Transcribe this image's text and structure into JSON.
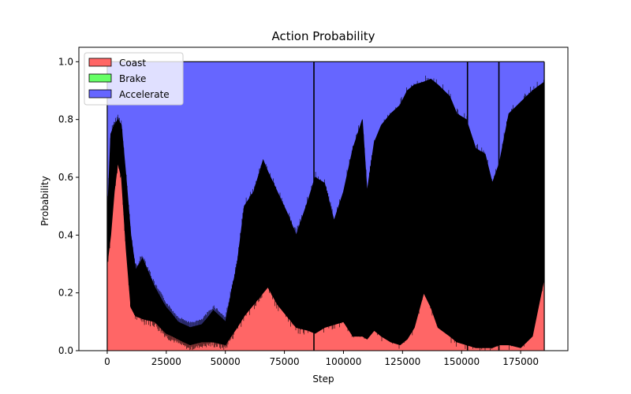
{
  "chart_data": {
    "type": "area",
    "stacked": true,
    "title": "Action Probability",
    "xlabel": "Step",
    "ylabel": "Probability",
    "xlim": [
      -12000,
      195000
    ],
    "ylim": [
      0,
      1.05
    ],
    "x_end": 185000,
    "xticks": [
      0,
      25000,
      50000,
      75000,
      100000,
      125000,
      150000,
      175000
    ],
    "xtick_labels": [
      "0",
      "25000",
      "50000",
      "75000",
      "100000",
      "125000",
      "150000",
      "175000"
    ],
    "yticks": [
      0.0,
      0.2,
      0.4,
      0.6,
      0.8,
      1.0
    ],
    "ytick_labels": [
      "0.0",
      "0.2",
      "0.4",
      "0.6",
      "0.8",
      "1.0"
    ],
    "legend_position": "top-left",
    "series": [
      {
        "name": "Coast",
        "color": "#ff6666",
        "x": [
          0,
          1500,
          3000,
          4500,
          6000,
          8000,
          10000,
          12000,
          15000,
          20000,
          25000,
          30000,
          35000,
          40000,
          45000,
          50000,
          55000,
          60000,
          65000,
          68000,
          72000,
          80000,
          90000,
          100000,
          110000,
          115000,
          120000,
          125000,
          130000,
          133000,
          136000,
          140000,
          145000,
          150000,
          155000,
          160000,
          165000,
          170000,
          175000,
          180000,
          185000
        ],
        "values": [
          0.35,
          0.6,
          0.7,
          0.72,
          0.7,
          0.55,
          0.3,
          0.15,
          0.13,
          0.12,
          0.08,
          0.05,
          0.03,
          0.04,
          0.06,
          0.05,
          0.12,
          0.18,
          0.26,
          0.29,
          0.25,
          0.17,
          0.1,
          0.15,
          0.07,
          0.1,
          0.05,
          0.07,
          0.15,
          0.3,
          0.26,
          0.12,
          0.08,
          0.05,
          0.04,
          0.02,
          0.03,
          0.05,
          0.03,
          0.1,
          0.28
        ]
      },
      {
        "name": "Brake",
        "color": "#66ff66",
        "x": [
          0,
          1500,
          3000,
          4500,
          6000,
          8000,
          10000,
          12000,
          15000,
          20000,
          25000,
          30000,
          35000,
          40000,
          45000,
          50000,
          55000,
          60000,
          65000,
          68000,
          72000,
          80000,
          90000,
          100000,
          110000,
          115000,
          120000,
          125000,
          130000,
          133000,
          136000,
          140000,
          145000,
          150000,
          155000,
          160000,
          165000,
          170000,
          175000,
          180000,
          185000
        ],
        "values": [
          0.05,
          0.1,
          0.05,
          0.06,
          0.01,
          0.02,
          0.01,
          0.01,
          0.01,
          0.01,
          0.01,
          0.01,
          0.01,
          0.01,
          0.01,
          0.01,
          0.01,
          0.01,
          0.01,
          0.01,
          0.01,
          0.01,
          0.01,
          0.01,
          0.01,
          0.01,
          0.01,
          0.01,
          0.01,
          0.01,
          0.01,
          0.01,
          0.01,
          0.01,
          0.01,
          0.01,
          0.01,
          0.01,
          0.01,
          0.01,
          0.01
        ]
      },
      {
        "name": "Accelerate",
        "color": "#6666ff",
        "x": [
          0,
          1500,
          3000,
          4500,
          6000,
          8000,
          10000,
          12000,
          15000,
          20000,
          25000,
          30000,
          35000,
          40000,
          45000,
          50000,
          55000,
          60000,
          65000,
          68000,
          72000,
          80000,
          90000,
          100000,
          110000,
          115000,
          120000,
          125000,
          130000,
          133000,
          136000,
          140000,
          145000,
          150000,
          155000,
          160000,
          165000,
          170000,
          175000,
          180000,
          185000
        ],
        "values": [
          0.6,
          0.3,
          0.25,
          0.22,
          0.29,
          0.43,
          0.69,
          0.84,
          0.86,
          0.87,
          0.91,
          0.94,
          0.96,
          0.95,
          0.93,
          0.94,
          0.87,
          0.81,
          0.73,
          0.7,
          0.74,
          0.82,
          0.89,
          0.84,
          0.92,
          0.89,
          0.94,
          0.92,
          0.84,
          0.69,
          0.73,
          0.87,
          0.91,
          0.94,
          0.95,
          0.97,
          0.96,
          0.94,
          0.96,
          0.89,
          0.71
        ]
      }
    ],
    "noise_envelope": {
      "color": "#000000",
      "x": [
        0,
        1500,
        3000,
        4500,
        6000,
        8000,
        10000,
        12000,
        15000,
        20000,
        25000,
        30000,
        35000,
        40000,
        45000,
        50000,
        55000,
        58000,
        62000,
        66000,
        68000,
        72000,
        76000,
        80000,
        85000,
        88000,
        92000,
        96000,
        100000,
        104000,
        108000,
        110000,
        113000,
        116000,
        120000,
        124000,
        127000,
        130000,
        134000,
        137000,
        140000,
        145000,
        148000,
        152000,
        156000,
        160000,
        163000,
        166000,
        170000,
        175000,
        180000,
        185000
      ],
      "low": [
        0.3,
        0.4,
        0.55,
        0.65,
        0.6,
        0.35,
        0.15,
        0.12,
        0.11,
        0.1,
        0.06,
        0.04,
        0.02,
        0.03,
        0.03,
        0.02,
        0.08,
        0.12,
        0.16,
        0.2,
        0.22,
        0.16,
        0.12,
        0.08,
        0.07,
        0.06,
        0.08,
        0.09,
        0.1,
        0.05,
        0.05,
        0.04,
        0.07,
        0.05,
        0.03,
        0.02,
        0.04,
        0.08,
        0.2,
        0.15,
        0.08,
        0.05,
        0.03,
        0.02,
        0.01,
        0.01,
        0.01,
        0.02,
        0.02,
        0.01,
        0.05,
        0.25
      ],
      "high": [
        0.45,
        0.75,
        0.78,
        0.8,
        0.78,
        0.6,
        0.4,
        0.28,
        0.32,
        0.22,
        0.15,
        0.1,
        0.08,
        0.09,
        0.14,
        0.1,
        0.3,
        0.5,
        0.55,
        0.66,
        0.62,
        0.55,
        0.48,
        0.4,
        0.52,
        0.6,
        0.58,
        0.45,
        0.55,
        0.7,
        0.8,
        0.55,
        0.72,
        0.78,
        0.82,
        0.85,
        0.9,
        0.92,
        0.93,
        0.94,
        0.92,
        0.88,
        0.82,
        0.8,
        0.7,
        0.68,
        0.58,
        0.65,
        0.82,
        0.86,
        0.9,
        0.93
      ]
    },
    "spike_lines": [
      87500,
      152500,
      165800
    ]
  }
}
